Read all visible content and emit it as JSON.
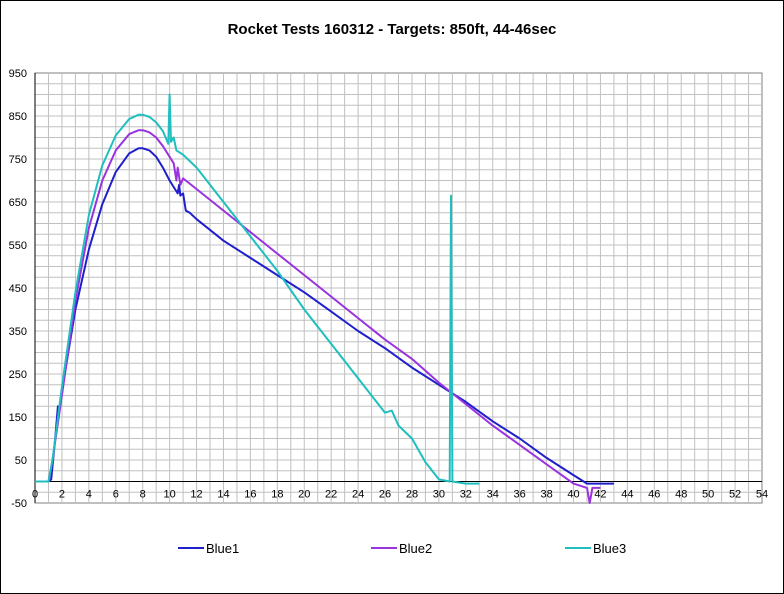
{
  "chart_data": {
    "type": "line",
    "title": "Rocket Tests 160312 - Targets: 850ft, 44-46sec",
    "xlabel": "",
    "ylabel": "",
    "xlim": [
      0,
      54
    ],
    "ylim": [
      -50,
      950
    ],
    "x_ticks": [
      0,
      2,
      4,
      6,
      8,
      10,
      12,
      14,
      16,
      18,
      20,
      22,
      24,
      26,
      28,
      30,
      32,
      34,
      36,
      38,
      40,
      42,
      44,
      46,
      48,
      50,
      52,
      54
    ],
    "y_ticks": [
      -50,
      50,
      150,
      250,
      350,
      450,
      550,
      650,
      750,
      850,
      950
    ],
    "grid": true,
    "legend": "bottom",
    "series": [
      {
        "name": "Blue1",
        "color": "#1f1fcc",
        "points": [
          [
            0,
            0
          ],
          [
            1,
            0
          ],
          [
            1.2,
            5
          ],
          [
            1.5,
            100
          ],
          [
            1.7,
            175
          ],
          [
            1.85,
            172
          ],
          [
            2,
            210
          ],
          [
            3,
            400
          ],
          [
            4,
            540
          ],
          [
            5,
            645
          ],
          [
            6,
            720
          ],
          [
            7,
            763
          ],
          [
            7.7,
            775
          ],
          [
            8,
            775
          ],
          [
            8.5,
            770
          ],
          [
            9,
            755
          ],
          [
            9.5,
            730
          ],
          [
            10,
            700
          ],
          [
            10.4,
            680
          ],
          [
            10.6,
            670
          ],
          [
            10.7,
            690
          ],
          [
            10.8,
            665
          ],
          [
            11,
            670
          ],
          [
            11.2,
            630
          ],
          [
            11.5,
            625
          ],
          [
            12,
            610
          ],
          [
            14,
            560
          ],
          [
            16,
            520
          ],
          [
            18,
            480
          ],
          [
            20,
            440
          ],
          [
            22,
            395
          ],
          [
            24,
            350
          ],
          [
            26,
            310
          ],
          [
            28,
            265
          ],
          [
            30,
            225
          ],
          [
            32,
            185
          ],
          [
            34,
            140
          ],
          [
            36,
            100
          ],
          [
            38,
            55
          ],
          [
            40,
            15
          ],
          [
            41,
            -5
          ],
          [
            42,
            -5
          ],
          [
            43,
            -5
          ]
        ]
      },
      {
        "name": "Blue2",
        "color": "#9933dd",
        "points": [
          [
            0,
            0
          ],
          [
            1,
            0
          ],
          [
            1.3,
            50
          ],
          [
            2,
            200
          ],
          [
            3,
            420
          ],
          [
            4,
            590
          ],
          [
            5,
            700
          ],
          [
            6,
            770
          ],
          [
            7,
            808
          ],
          [
            7.7,
            817
          ],
          [
            8,
            817
          ],
          [
            8.5,
            812
          ],
          [
            9,
            800
          ],
          [
            9.5,
            780
          ],
          [
            10,
            755
          ],
          [
            10.3,
            740
          ],
          [
            10.5,
            700
          ],
          [
            10.6,
            730
          ],
          [
            10.8,
            690
          ],
          [
            11,
            705
          ],
          [
            12,
            680
          ],
          [
            14,
            630
          ],
          [
            16,
            580
          ],
          [
            18,
            530
          ],
          [
            20,
            480
          ],
          [
            22,
            430
          ],
          [
            24,
            380
          ],
          [
            26,
            330
          ],
          [
            28,
            285
          ],
          [
            30,
            230
          ],
          [
            32,
            180
          ],
          [
            34,
            130
          ],
          [
            36,
            85
          ],
          [
            38,
            40
          ],
          [
            40,
            -5
          ],
          [
            41,
            -15
          ],
          [
            41.2,
            -50
          ],
          [
            41.4,
            -15
          ],
          [
            42,
            -15
          ]
        ]
      },
      {
        "name": "Blue3",
        "color": "#1fbfbf",
        "points": [
          [
            0,
            0
          ],
          [
            1,
            0
          ],
          [
            1.3,
            50
          ],
          [
            2,
            220
          ],
          [
            3,
            440
          ],
          [
            4,
            620
          ],
          [
            5,
            735
          ],
          [
            6,
            805
          ],
          [
            7,
            843
          ],
          [
            7.7,
            853
          ],
          [
            8,
            853
          ],
          [
            8.5,
            848
          ],
          [
            9,
            835
          ],
          [
            9.5,
            815
          ],
          [
            9.9,
            785
          ],
          [
            10,
            900
          ],
          [
            10.1,
            790
          ],
          [
            10.3,
            800
          ],
          [
            10.5,
            770
          ],
          [
            11,
            760
          ],
          [
            12,
            730
          ],
          [
            14,
            650
          ],
          [
            16,
            570
          ],
          [
            18,
            490
          ],
          [
            20,
            400
          ],
          [
            22,
            320
          ],
          [
            24,
            240
          ],
          [
            26,
            160
          ],
          [
            26.5,
            165
          ],
          [
            27,
            130
          ],
          [
            28,
            100
          ],
          [
            29,
            45
          ],
          [
            30,
            5
          ],
          [
            30.8,
            0
          ],
          [
            30.9,
            665
          ],
          [
            31,
            0
          ],
          [
            32,
            -5
          ],
          [
            33,
            -5
          ]
        ]
      }
    ]
  }
}
